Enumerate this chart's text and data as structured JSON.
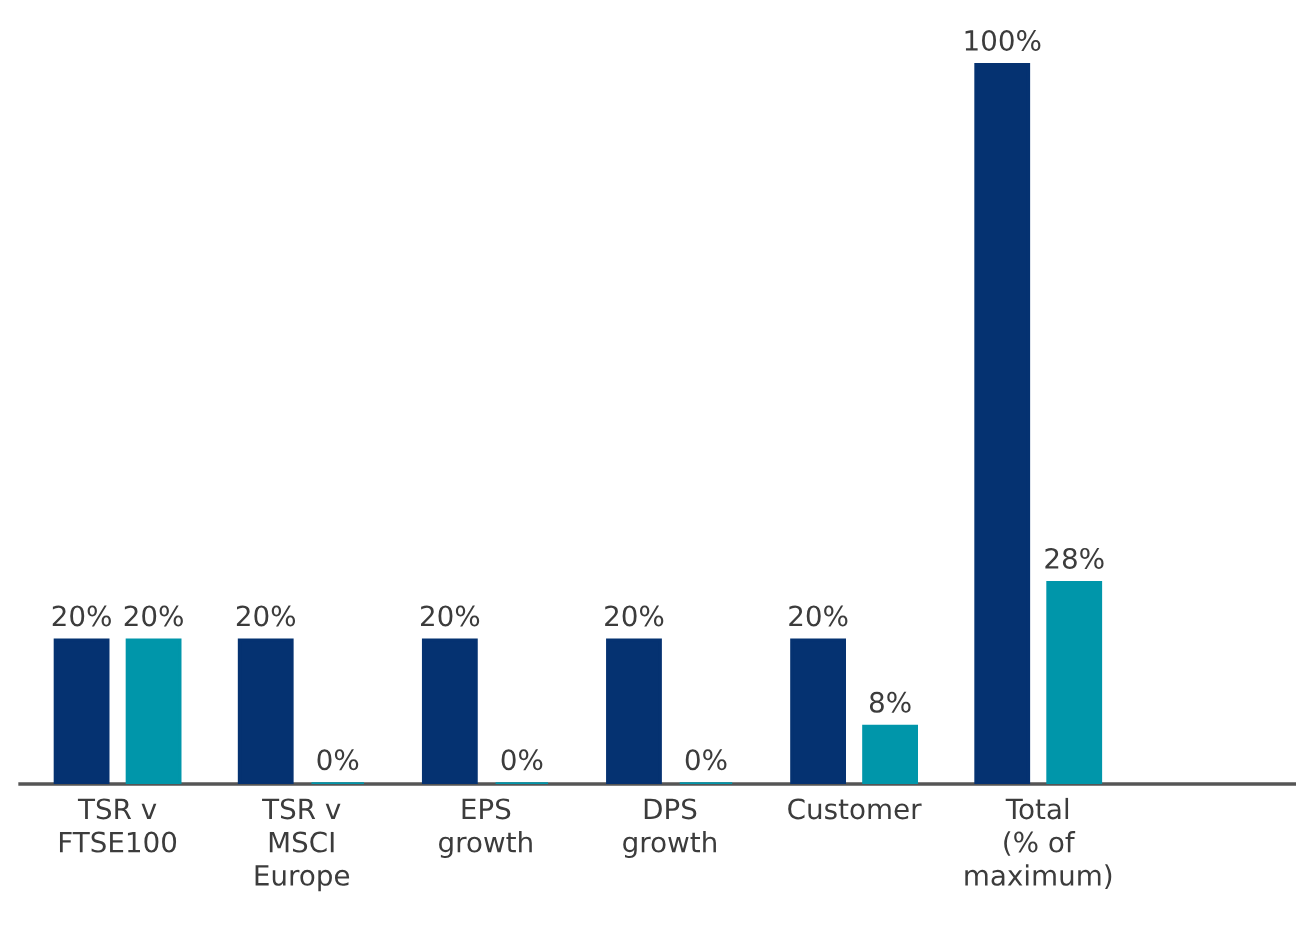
{
  "chart_data": {
    "type": "bar",
    "categories": [
      "TSR v\nFTSE100",
      "TSR v\nMSCI\nEurope",
      "EPS\ngrowth",
      "DPS\ngrowth",
      "Customer",
      "Total\n(% of\nmaximum)"
    ],
    "series": [
      {
        "color": "#053271",
        "values": [
          20,
          20,
          20,
          20,
          20,
          100
        ],
        "value_labels": [
          "20%",
          "20%",
          "20%",
          "20%",
          "20%",
          "100%"
        ]
      },
      {
        "color": "#0096aa",
        "values": [
          20,
          0,
          0,
          0,
          8,
          28
        ],
        "value_labels": [
          "20%",
          "0%",
          "0%",
          "0%",
          "8%",
          "28%"
        ]
      }
    ]
  }
}
